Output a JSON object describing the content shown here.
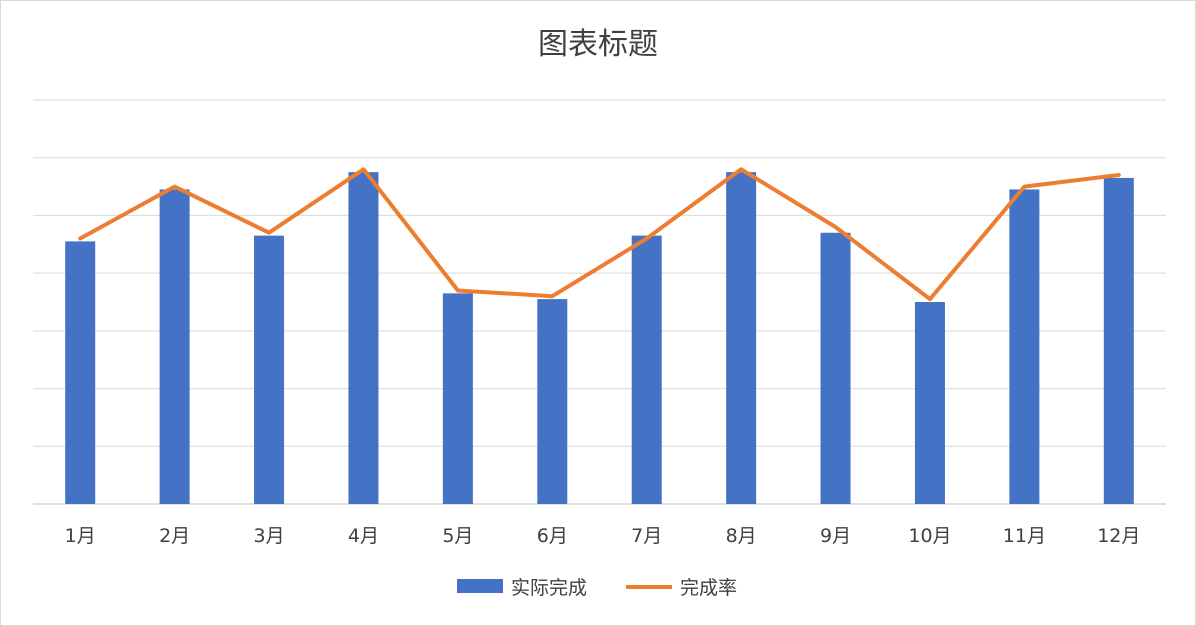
{
  "chart_data": {
    "type": "bar",
    "title": "图表标题",
    "categories": [
      "1月",
      "2月",
      "3月",
      "4月",
      "5月",
      "6月",
      "7月",
      "8月",
      "9月",
      "10月",
      "11月",
      "12月"
    ],
    "ylim": [
      0,
      7
    ],
    "grid": true,
    "legend_position": "bottom",
    "series": [
      {
        "name": "实际完成",
        "type": "bar",
        "color": "#4472C4",
        "values": [
          4.55,
          5.45,
          4.65,
          5.75,
          3.65,
          3.55,
          4.65,
          5.75,
          4.7,
          3.5,
          5.45,
          5.65
        ]
      },
      {
        "name": "完成率",
        "type": "line",
        "color": "#ED7D31",
        "values": [
          4.6,
          5.5,
          4.7,
          5.8,
          3.7,
          3.6,
          4.6,
          5.8,
          4.8,
          3.55,
          5.5,
          5.7
        ]
      }
    ]
  }
}
